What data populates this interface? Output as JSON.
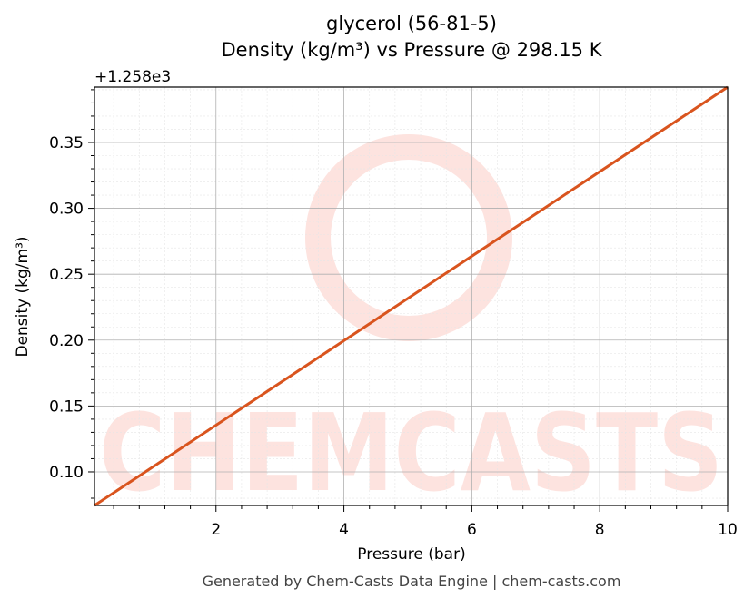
{
  "chart_data": {
    "type": "line",
    "title": "glycerol (56-81-5)",
    "subtitle": "Density (kg/m³) vs Pressure @ 298.15 K",
    "x_label": "Pressure (bar)",
    "y_label": "Density (kg/m³)",
    "y_offset_label": "+1.258e3",
    "watermark": "CHEMCASTS",
    "footer": "Generated by Chem-Casts Data Engine | chem-casts.com",
    "x": [
      0.1,
      10
    ],
    "series": [
      {
        "name": "glycerol",
        "color": "#d9541e",
        "values": [
          0.0745,
          0.392
        ]
      }
    ],
    "xlim": [
      0.1,
      10
    ],
    "ylim": [
      0.0745,
      0.392
    ],
    "xticks": [
      2,
      4,
      6,
      8,
      10
    ],
    "yticks": [
      {
        "value": 0.1,
        "label": "0.10"
      },
      {
        "value": 0.15,
        "label": "0.15"
      },
      {
        "value": 0.2,
        "label": "0.20"
      },
      {
        "value": 0.25,
        "label": "0.25"
      },
      {
        "value": 0.3,
        "label": "0.30"
      },
      {
        "value": 0.35,
        "label": "0.35"
      }
    ],
    "xminorticks": [
      0.4,
      0.8,
      1.2,
      1.6,
      2.4,
      2.8,
      3.2,
      3.6,
      4.4,
      4.8,
      5.2,
      5.6,
      6.4,
      6.8,
      7.2,
      7.6,
      8.4,
      8.8,
      9.2,
      9.6
    ],
    "yminorticks": [
      0.08,
      0.09,
      0.11,
      0.12,
      0.13,
      0.14,
      0.16,
      0.17,
      0.18,
      0.19,
      0.21,
      0.22,
      0.23,
      0.24,
      0.26,
      0.27,
      0.28,
      0.29,
      0.31,
      0.32,
      0.33,
      0.34,
      0.36,
      0.37,
      0.38,
      0.39
    ],
    "grid": true
  }
}
